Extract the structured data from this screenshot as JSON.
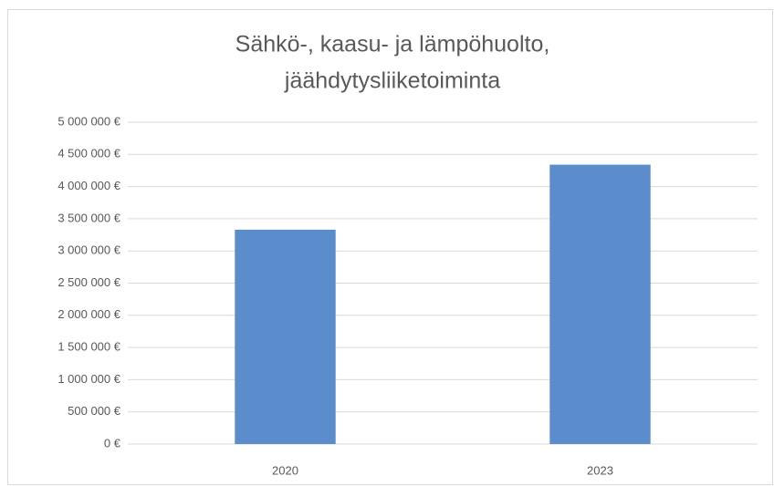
{
  "chart_data": {
    "type": "bar",
    "title": [
      "Sähkö-, kaasu- ja lämpöhuolto,",
      "jäähdytysliiketoiminta"
    ],
    "categories": [
      "2020",
      "2023"
    ],
    "values": [
      3330000,
      4340000
    ],
    "color": "#5b8ccc",
    "ylim": [
      0,
      5000000
    ],
    "yticks": [
      {
        "value": 0,
        "label": "0 €"
      },
      {
        "value": 500000,
        "label": "500 000 €"
      },
      {
        "value": 1000000,
        "label": "1 000 000 €"
      },
      {
        "value": 1500000,
        "label": "1 500 000 €"
      },
      {
        "value": 2000000,
        "label": "2 000 000 €"
      },
      {
        "value": 2500000,
        "label": "2 500 000 €"
      },
      {
        "value": 3000000,
        "label": "3 000 000 €"
      },
      {
        "value": 3500000,
        "label": "3 500 000 €"
      },
      {
        "value": 4000000,
        "label": "4 000 000 €"
      },
      {
        "value": 4500000,
        "label": "4 500 000 €"
      },
      {
        "value": 5000000,
        "label": "5 000 000 €"
      }
    ],
    "grid": true
  }
}
